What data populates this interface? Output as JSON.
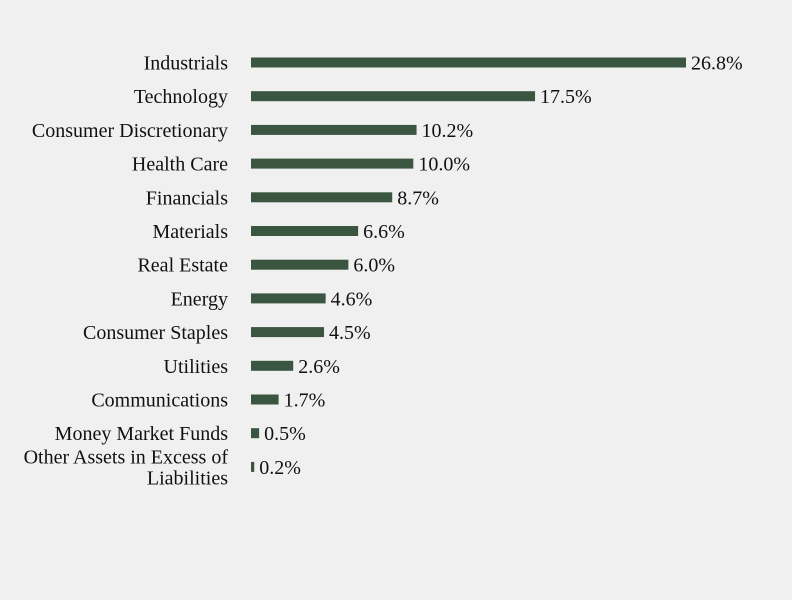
{
  "chart_data": {
    "type": "bar",
    "orientation": "horizontal",
    "categories": [
      "Industrials",
      "Technology",
      "Consumer Discretionary",
      "Health Care",
      "Financials",
      "Materials",
      "Real Estate",
      "Energy",
      "Consumer Staples",
      "Utilities",
      "Communications",
      "Money Market Funds",
      "Other Assets in Excess of Liabilities"
    ],
    "values": [
      26.8,
      17.5,
      10.2,
      10.0,
      8.7,
      6.6,
      6.0,
      4.6,
      4.5,
      2.6,
      1.7,
      0.5,
      0.2
    ],
    "value_labels": [
      "26.8%",
      "17.5%",
      "10.2%",
      "10.0%",
      "8.7%",
      "6.6%",
      "6.0%",
      "4.6%",
      "4.5%",
      "2.6%",
      "1.7%",
      "0.5%",
      "0.2%"
    ],
    "xlim": [
      0,
      26.8
    ],
    "bar_color": "#3b5640",
    "grid": false,
    "legend": "none"
  }
}
